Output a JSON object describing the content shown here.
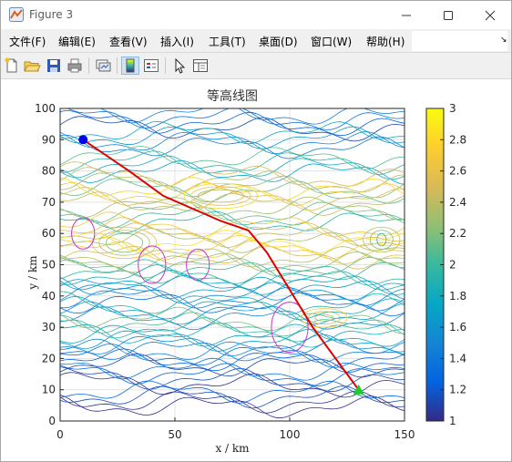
{
  "window": {
    "title": "Figure 3",
    "icon": "matlab-figure-icon"
  },
  "menu": [
    "文件(F)",
    "编辑(E)",
    "查看(V)",
    "插入(I)",
    "工具(T)",
    "桌面(D)",
    "窗口(W)",
    "帮助(H)"
  ],
  "toolbar": {
    "buttons": [
      "new-figure-icon",
      "open-file-icon",
      "save-icon",
      "print-icon",
      "link-plot-icon",
      "colorbar-icon",
      "legend-icon",
      "pointer-icon",
      "property-editor-icon"
    ]
  },
  "chart_data": {
    "type": "contour",
    "title": "等高线图",
    "xlabel": "x / km",
    "ylabel": "y / km",
    "xlim": [
      0,
      150
    ],
    "ylim": [
      0,
      100
    ],
    "xticks": [
      0,
      50,
      100,
      150
    ],
    "yticks": [
      0,
      10,
      20,
      30,
      40,
      50,
      60,
      70,
      80,
      90,
      100
    ],
    "grid": true,
    "colormap": "parula",
    "colorbar": {
      "limits": [
        1,
        3
      ],
      "ticks": [
        "1",
        "1.2",
        "1.4",
        "1.6",
        "1.8",
        "2",
        "2.2",
        "2.4",
        "2.6",
        "2.8",
        "3"
      ],
      "colors": [
        "#352a87",
        "#0363e1",
        "#1485d4",
        "#06a7c6",
        "#38b99e",
        "#92bf73",
        "#d9ba56",
        "#fcce2e",
        "#f9fb0e"
      ]
    },
    "path": {
      "color": "#dd0000",
      "points": [
        [
          10,
          90
        ],
        [
          30,
          80
        ],
        [
          45,
          72
        ],
        [
          70,
          64
        ],
        [
          82,
          61
        ],
        [
          90,
          54
        ],
        [
          100,
          42
        ],
        [
          110,
          30
        ],
        [
          122,
          18
        ],
        [
          130,
          10
        ]
      ]
    },
    "start": {
      "x": 10,
      "y": 90,
      "color": "#0000ee"
    },
    "end": {
      "x": 130,
      "y": 10,
      "color": "#22cc22"
    },
    "threat_circles": [
      {
        "x": 10,
        "y": 60,
        "rx": 5,
        "ry": 5,
        "color": "#cc33cc"
      },
      {
        "x": 40,
        "y": 50,
        "rx": 6,
        "ry": 6,
        "color": "#cc33cc"
      },
      {
        "x": 60,
        "y": 50,
        "rx": 5,
        "ry": 5,
        "color": "#cc33cc"
      },
      {
        "x": 100,
        "y": 30,
        "rx": 8,
        "ry": 8,
        "color": "#cc33cc"
      }
    ],
    "contour_bands": [
      {
        "y": 96,
        "level": 1.3
      },
      {
        "y": 90,
        "level": 1.6
      },
      {
        "y": 82,
        "level": 1.9
      },
      {
        "y": 76,
        "level": 2.3
      },
      {
        "y": 72,
        "level": 2.6
      },
      {
        "y": 66,
        "level": 2.1
      },
      {
        "y": 60,
        "level": 2.5
      },
      {
        "y": 55,
        "level": 2.7
      },
      {
        "y": 50,
        "level": 2.2
      },
      {
        "y": 45,
        "level": 1.8
      },
      {
        "y": 40,
        "level": 1.5
      },
      {
        "y": 35,
        "level": 1.7
      },
      {
        "y": 30,
        "level": 2.0
      },
      {
        "y": 25,
        "level": 1.6
      },
      {
        "y": 20,
        "level": 1.3
      },
      {
        "y": 14,
        "level": 1.2
      },
      {
        "y": 7,
        "level": 1.1
      }
    ]
  }
}
